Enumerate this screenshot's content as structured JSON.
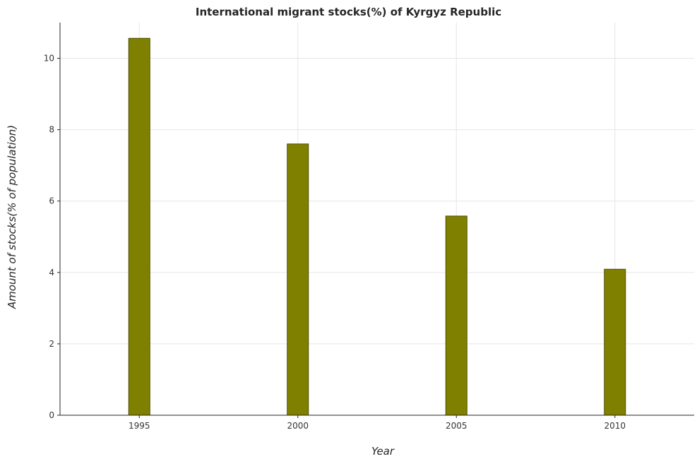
{
  "chart_data": {
    "type": "bar",
    "title": "International migrant stocks(%) of Kyrgyz Republic",
    "xlabel": "Year",
    "ylabel": "Amount of stocks(% of population)",
    "categories": [
      "1995",
      "2000",
      "2005",
      "2010"
    ],
    "values": [
      10.56,
      7.6,
      5.58,
      4.09
    ],
    "ylim": [
      0,
      11
    ],
    "yticks": [
      0,
      2,
      4,
      6,
      8,
      10
    ],
    "ytick_labels": [
      "0",
      "2",
      "4",
      "6",
      "8",
      "10"
    ],
    "grid": true,
    "colors": {
      "bar_fill": "#808000",
      "bar_stroke": "#4d4d00",
      "grid": "#e6e6e6",
      "axis": "#262626"
    }
  }
}
